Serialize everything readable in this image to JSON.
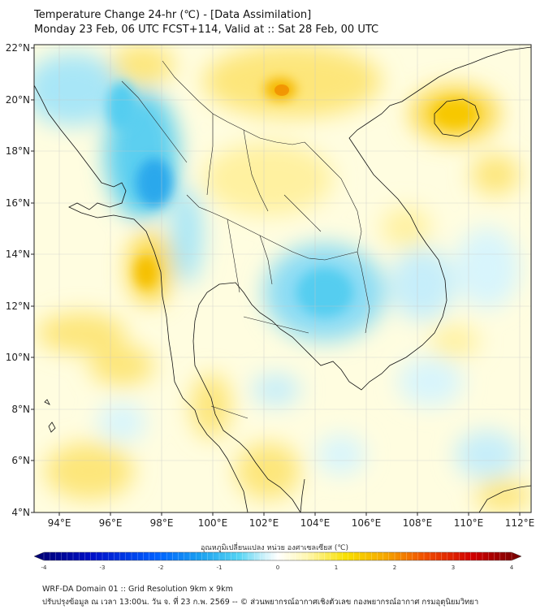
{
  "title": {
    "line1": "Temperature Change 24-hr (℃) - [Data Assimilation]",
    "line2": "Monday 23 Feb, 06 UTC FCST+114, Valid at :: Sat 28 Feb, 00 UTC"
  },
  "map": {
    "lat_labels": [
      "22°N",
      "20°N",
      "18°N",
      "16°N",
      "14°N",
      "12°N",
      "10°N",
      "8°N",
      "6°N",
      "4°N"
    ],
    "lon_labels": [
      "94°E",
      "96°E",
      "98°E",
      "100°E",
      "102°E",
      "104°E",
      "106°E",
      "108°E",
      "110°E",
      "112°E"
    ],
    "lat_range": [
      4,
      22
    ],
    "lon_range": [
      93,
      112.4
    ],
    "field_colors": {
      "warm": "#f5c800",
      "warm_light": "#fff3a0",
      "pale": "#fffde0",
      "cool_light": "#d6f4fb",
      "cool": "#4dc9ee",
      "cool_dark": "#1d92e0",
      "hot": "#f08a00"
    }
  },
  "colorbar": {
    "label": "อุณหภูมิเปลี่ยนแปลง หน่วย องศาเซลเซียส (℃)",
    "ticks": [
      "-4",
      "-3",
      "-2",
      "-1",
      "0",
      "1",
      "2",
      "3",
      "4"
    ],
    "range": [
      -4,
      4
    ],
    "colors": [
      "#00006e",
      "#0010c8",
      "#0060ff",
      "#1aa0f0",
      "#55d4f4",
      "#c8f0fa",
      "#ffffff",
      "#fff7b0",
      "#f8e000",
      "#f5a800",
      "#f05000",
      "#d00000",
      "#700000"
    ]
  },
  "footer": {
    "line1": "WRF-DA Domain 01 :: Grid Resolution 9km x 9km",
    "line2": "ปรับปรุงข้อมูล ณ เวลา 13:00น. วัน จ. ที่ 23 ก.พ. 2569 -- © ส่วนพยากรณ์อากาศเชิงตัวเลข กองพยากรณ์อากาศ กรมอุตุนิยมวิทยา"
  }
}
